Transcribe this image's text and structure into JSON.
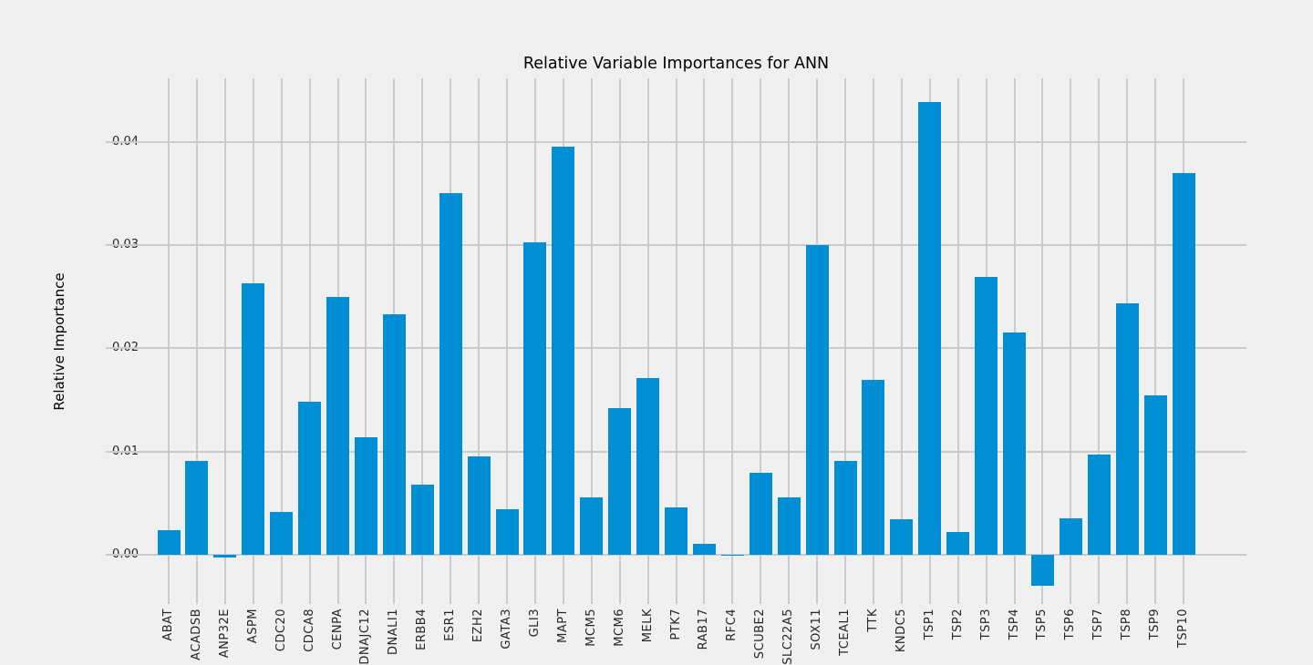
{
  "chart_data": {
    "type": "bar",
    "title": "Relative Variable Importances for ANN",
    "xlabel": "",
    "ylabel": "Relative Importance",
    "categories": [
      "ABAT",
      "ACADSB",
      "ANP32E",
      "ASPM",
      "CDC20",
      "CDCA8",
      "CENPA",
      "DNAJC12",
      "DNALI1",
      "ERBB4",
      "ESR1",
      "EZH2",
      "GATA3",
      "GLI3",
      "MAPT",
      "MCM5",
      "MCM6",
      "MELK",
      "PTK7",
      "RAB17",
      "RFC4",
      "SCUBE2",
      "SLC22A5",
      "SOX11",
      "TCEAL1",
      "TTK",
      "KNDC5",
      "TSP1",
      "TSP2",
      "TSP3",
      "TSP4",
      "TSP5",
      "TSP6",
      "TSP7",
      "TSP8",
      "TSP9",
      "TSP10"
    ],
    "values": [
      0.0024,
      0.0091,
      -0.0003,
      0.0263,
      0.0041,
      0.0148,
      0.025,
      0.0114,
      0.0233,
      0.0068,
      0.0351,
      0.0095,
      0.0044,
      0.0303,
      0.0396,
      0.0055,
      0.0142,
      0.0171,
      0.0046,
      0.001,
      -0.0001,
      0.0079,
      0.0055,
      0.03,
      0.0091,
      0.0169,
      0.0034,
      0.0439,
      0.0022,
      0.0269,
      0.0215,
      -0.003,
      0.0035,
      0.0097,
      0.0244,
      0.0154,
      0.037
    ],
    "yticks": [
      0.0,
      0.01,
      0.02,
      0.03,
      0.04
    ],
    "ytick_labels": [
      "0.00",
      "0.01",
      "0.02",
      "0.03",
      "0.04"
    ],
    "ylim": [
      -0.0048,
      0.0462
    ],
    "grid": "on",
    "legend": "none",
    "bar_color": "#008fd5",
    "background_color": "#f0f0f0",
    "grid_color": "#cbcbcb"
  }
}
